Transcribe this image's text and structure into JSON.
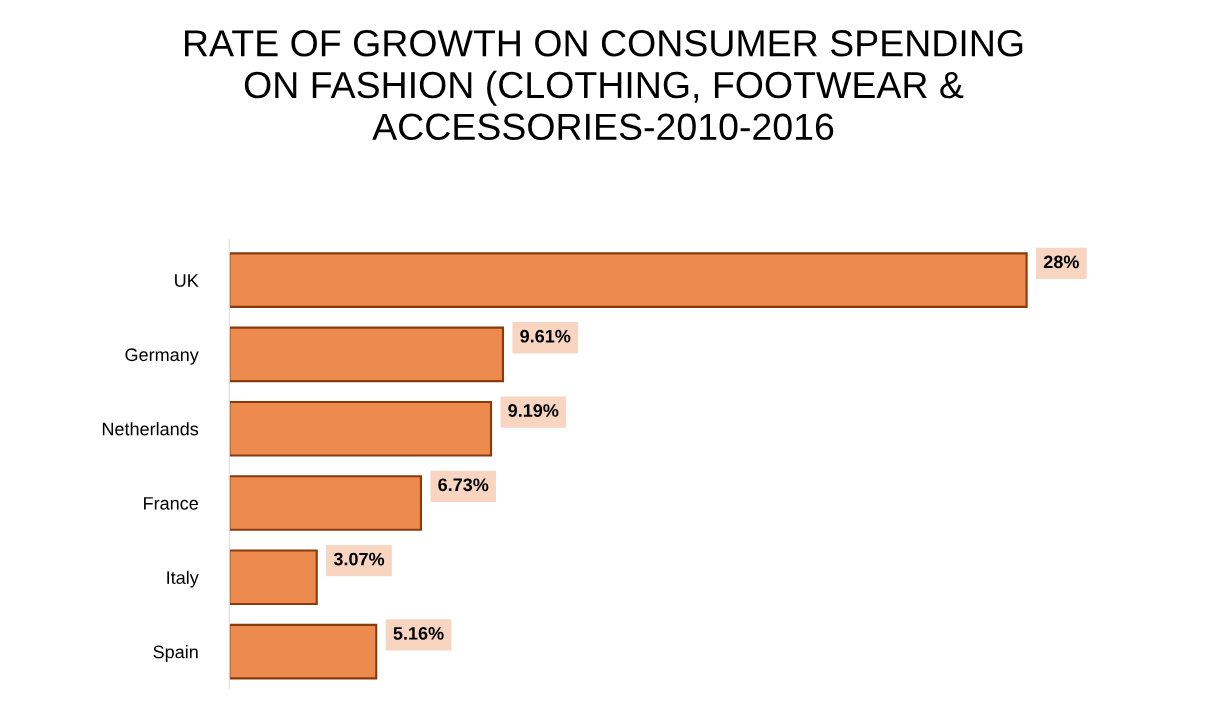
{
  "chart_data": {
    "type": "bar",
    "orientation": "horizontal",
    "title": "RATE OF GROWTH ON CONSUMER SPENDING\nON FASHION (CLOTHING, FOOTWEAR &\nACCESSORIES-2010-2016",
    "categories": [
      "UK",
      "Germany",
      "Netherlands",
      "France",
      "Italy",
      "Spain"
    ],
    "values": [
      28,
      9.61,
      9.19,
      6.73,
      3.07,
      5.16
    ],
    "value_labels": [
      "28%",
      "9.61%",
      "9.19%",
      "6.73%",
      "3.07%",
      "5.16%"
    ],
    "color": "#ed8b4e",
    "grid": false,
    "tick_labels": "y"
  }
}
